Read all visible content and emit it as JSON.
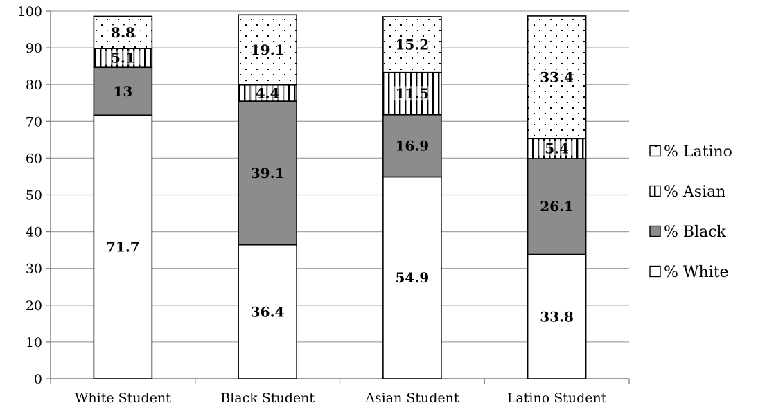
{
  "chart_data": {
    "type": "bar",
    "stacked": true,
    "categories": [
      "White Student",
      "Black Student",
      "Asian Student",
      "Latino Student"
    ],
    "series": [
      {
        "name": "% White",
        "values": [
          71.7,
          36.4,
          54.9,
          33.8
        ],
        "fill": "#ffffff",
        "pattern": "none"
      },
      {
        "name": "% Black",
        "values": [
          13,
          39.1,
          16.9,
          26.1
        ],
        "fill": "#8c8c8c",
        "pattern": "none"
      },
      {
        "name": "% Asian",
        "values": [
          5.1,
          4.4,
          11.5,
          5.4
        ],
        "fill": "#ffffff",
        "pattern": "vertical-lines"
      },
      {
        "name": "% Latino",
        "values": [
          8.8,
          19.1,
          15.2,
          33.4
        ],
        "fill": "#ffffff",
        "pattern": "dots"
      }
    ],
    "title": "",
    "xlabel": "",
    "ylabel": "",
    "ylim": [
      0,
      100
    ],
    "yticks": [
      0,
      10,
      20,
      30,
      40,
      50,
      60,
      70,
      80,
      90,
      100
    ],
    "grid": true,
    "legend_position": "right",
    "legend_order": [
      "% Latino",
      "% Asian",
      "% Black",
      "% White"
    ],
    "colors": {
      "grid": "#a6a6a6",
      "axis": "#7f7f7f",
      "bar_stroke": "#000000",
      "text": "#000000"
    }
  }
}
